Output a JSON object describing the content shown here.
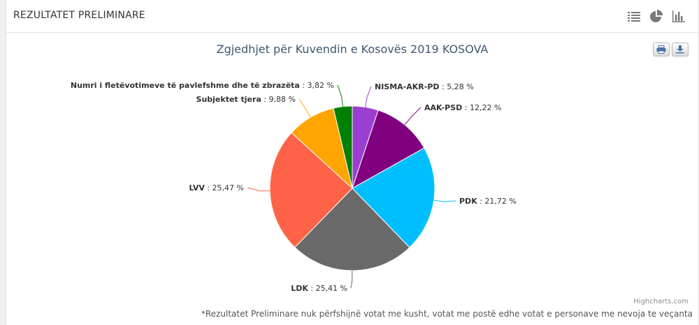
{
  "panel": {
    "title": "REZULTATET PRELIMINARE"
  },
  "toolbar": {
    "icons": [
      "list-icon",
      "pie-chart-icon",
      "bar-chart-icon"
    ]
  },
  "chart_data": {
    "type": "pie",
    "title": "Zgjedhjet për Kuvendin e Kosovës 2019 KOSOVA",
    "series": [
      {
        "name": "NISMA-AKR-PD",
        "value": 5.28,
        "label": "5,28 %",
        "color": "#9b3fd0"
      },
      {
        "name": "AAK-PSD",
        "value": 12.22,
        "label": "12,22 %",
        "color": "#800080"
      },
      {
        "name": "PDK",
        "value": 21.72,
        "label": "21,72 %",
        "color": "#00bfff"
      },
      {
        "name": "LDK",
        "value": 25.41,
        "label": "25,41 %",
        "color": "#696969"
      },
      {
        "name": "LVV",
        "value": 25.47,
        "label": "25,47 %",
        "color": "#ff6347"
      },
      {
        "name": "Subjektet tjera",
        "value": 9.88,
        "label": "9,88 %",
        "color": "#ffa500"
      },
      {
        "name": "Numri i fletëvotimeve të pavlefshme dhe të zbrazëta",
        "value": 3.82,
        "label": "3,82 %",
        "color": "#008000"
      }
    ]
  },
  "credits": "Highcharts.com",
  "footnote": "*Rezultatet Preliminare nuk përfshijnë votat me kusht, votat me postë edhe votat e personave me nevoja te veçanta"
}
